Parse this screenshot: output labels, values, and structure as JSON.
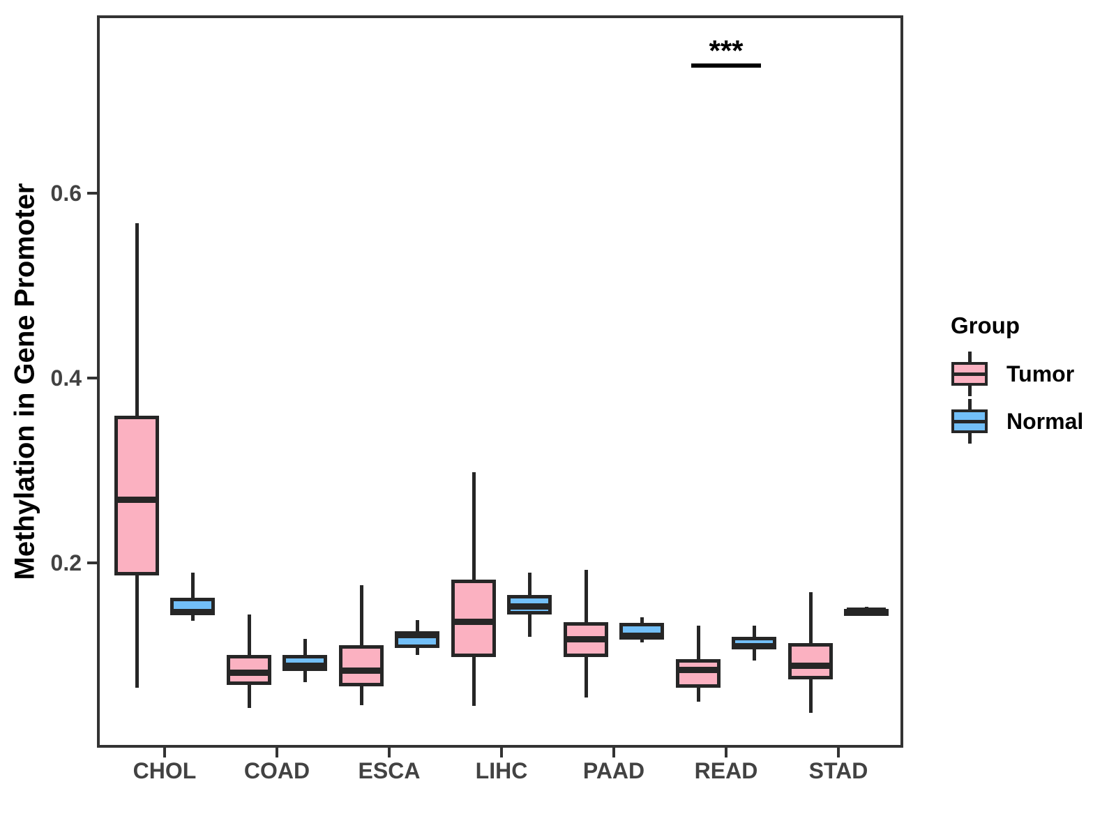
{
  "chart_data": {
    "type": "boxplot",
    "title": "",
    "ylabel": "Methylation in Gene Promoter",
    "xlabel": "",
    "ylim": [
      0,
      0.792
    ],
    "yticks": [
      0.2,
      0.4,
      0.6
    ],
    "ytick_labels": [
      "0.2",
      "0.4",
      "0.6"
    ],
    "grid": false,
    "categories": [
      "CHOL",
      "COAD",
      "ESCA",
      "LIHC",
      "PAAD",
      "READ",
      "STAD"
    ],
    "series": [
      {
        "name": "Tumor",
        "fill": "#FBB1C1",
        "boxes": [
          {
            "low": 0.065,
            "q1": 0.186,
            "median": 0.268,
            "q3": 0.359,
            "high": 0.567
          },
          {
            "low": 0.043,
            "q1": 0.068,
            "median": 0.081,
            "q3": 0.1,
            "high": 0.144
          },
          {
            "low": 0.046,
            "q1": 0.066,
            "median": 0.083,
            "q3": 0.111,
            "high": 0.176
          },
          {
            "low": 0.045,
            "q1": 0.098,
            "median": 0.136,
            "q3": 0.182,
            "high": 0.298
          },
          {
            "low": 0.054,
            "q1": 0.098,
            "median": 0.117,
            "q3": 0.136,
            "high": 0.192
          },
          {
            "low": 0.05,
            "q1": 0.065,
            "median": 0.084,
            "q3": 0.096,
            "high": 0.132
          },
          {
            "low": 0.038,
            "q1": 0.074,
            "median": 0.089,
            "q3": 0.113,
            "high": 0.168
          }
        ]
      },
      {
        "name": "Normal",
        "fill": "#72BFF8",
        "boxes": [
          {
            "low": 0.137,
            "q1": 0.143,
            "median": 0.147,
            "q3": 0.162,
            "high": 0.189
          },
          {
            "low": 0.071,
            "q1": 0.083,
            "median": 0.089,
            "q3": 0.1,
            "high": 0.118
          },
          {
            "low": 0.1,
            "q1": 0.108,
            "median": 0.122,
            "q3": 0.126,
            "high": 0.138
          },
          {
            "low": 0.12,
            "q1": 0.144,
            "median": 0.153,
            "q3": 0.165,
            "high": 0.189
          },
          {
            "low": 0.114,
            "q1": 0.117,
            "median": 0.121,
            "q3": 0.135,
            "high": 0.141
          },
          {
            "low": 0.094,
            "q1": 0.106,
            "median": 0.11,
            "q3": 0.12,
            "high": 0.132
          },
          {
            "low": 0.145,
            "q1": 0.147,
            "median": 0.148,
            "q3": 0.15,
            "high": 0.152
          }
        ]
      }
    ],
    "legend": {
      "title": "Group",
      "position": "right"
    },
    "significance": {
      "text": "***",
      "category": "READ",
      "bar_value": 0.74
    },
    "colors": {
      "tumor_fill": "#FBB1C1",
      "normal_fill": "#72BFF8",
      "box_border": "#262626",
      "panel_border": "#333333",
      "axis_text": "#424242"
    }
  }
}
